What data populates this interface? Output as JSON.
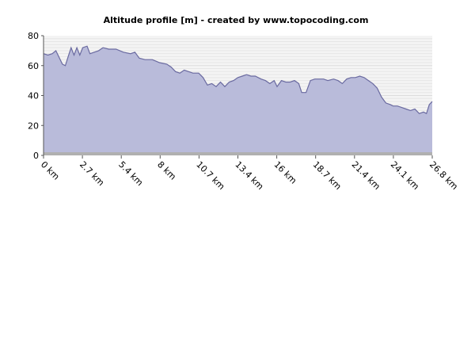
{
  "chart_data": {
    "type": "area",
    "title": "Altitude profile [m] - created by www.topocoding.com",
    "xlabel": "",
    "ylabel": "",
    "xlim": [
      0,
      26.8
    ],
    "ylim": [
      0,
      80
    ],
    "y_ticks": [
      "0",
      "20",
      "40",
      "60",
      "80"
    ],
    "x_ticks": [
      "0 km",
      "2.7 km",
      "5.4 km",
      "8 km",
      "10.7 km",
      "13.4 km",
      "16 km",
      "18.7 km",
      "21.4 km",
      "24.1 km",
      "26.8 km"
    ],
    "x_tick_values": [
      0,
      2.68,
      5.36,
      8.04,
      10.72,
      13.4,
      16.08,
      18.76,
      21.44,
      24.12,
      26.8
    ],
    "grid": "horizontal",
    "legend": "none",
    "series": [
      {
        "x": [
          0,
          0.3,
          0.6,
          0.85,
          1.05,
          1.3,
          1.5,
          1.7,
          1.9,
          2.1,
          2.3,
          2.5,
          2.7,
          3.0,
          3.2,
          3.5,
          3.8,
          4.1,
          4.5,
          5.0,
          5.5,
          6.0,
          6.3,
          6.6,
          7.0,
          7.5,
          8.0,
          8.5,
          8.8,
          9.1,
          9.4,
          9.7,
          10.0,
          10.3,
          10.7,
          11.0,
          11.3,
          11.6,
          11.9,
          12.2,
          12.5,
          12.8,
          13.1,
          13.4,
          13.7,
          14.0,
          14.3,
          14.6,
          15.0,
          15.3,
          15.6,
          15.9,
          16.1,
          16.4,
          16.7,
          17.0,
          17.3,
          17.6,
          17.8,
          18.1,
          18.4,
          18.7,
          19.0,
          19.3,
          19.6,
          20.0,
          20.3,
          20.6,
          20.9,
          21.2,
          21.5,
          21.8,
          22.1,
          22.4,
          22.7,
          23.0,
          23.3,
          23.6,
          23.9,
          24.1,
          24.4,
          24.7,
          25.0,
          25.3,
          25.6,
          25.9,
          26.2,
          26.4,
          26.6,
          26.8
        ],
        "values": [
          68,
          67,
          68,
          70,
          66,
          61,
          60,
          66,
          72,
          67,
          72,
          67,
          72,
          73,
          68,
          69,
          70,
          72,
          71,
          71,
          69,
          68,
          69,
          65,
          64,
          64,
          62,
          61,
          59,
          56,
          55,
          57,
          56,
          55,
          55,
          52,
          47,
          48,
          46,
          49,
          46,
          49,
          50,
          52,
          53,
          54,
          53,
          53,
          51,
          50,
          48,
          50,
          46,
          50,
          49,
          49,
          50,
          48,
          42,
          42,
          50,
          51,
          51,
          51,
          50,
          51,
          50,
          48,
          51,
          52,
          52,
          53,
          52,
          50,
          48,
          45,
          39,
          35,
          34,
          33,
          33,
          32,
          31,
          30,
          31,
          28,
          29,
          28,
          34,
          36
        ]
      }
    ]
  }
}
